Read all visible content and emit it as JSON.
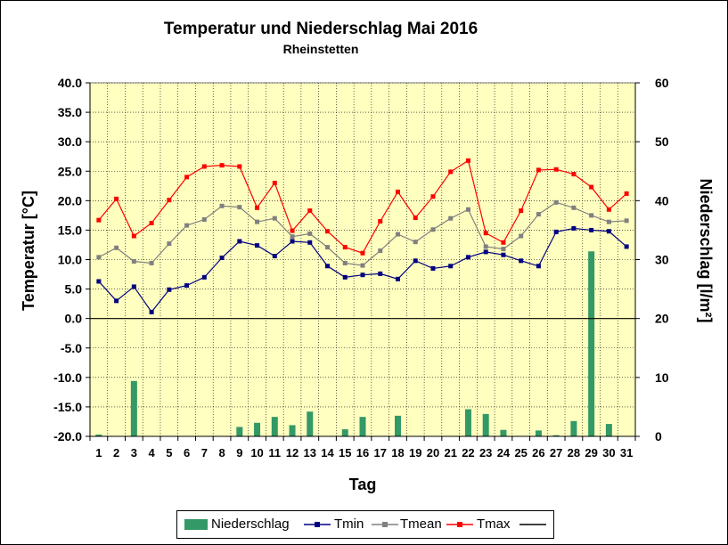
{
  "chart_data": {
    "type": "bar+line",
    "title": "Temperatur und Niederschlag Mai 2016",
    "subtitle": "Rheinstetten",
    "xlabel": "Tag",
    "ylabel_left": "Temperatur [°C]",
    "ylabel_right": "Niederschlag [l/m²]",
    "ylim_left": [
      -20,
      40
    ],
    "ylim_right": [
      0,
      60
    ],
    "grid": "horizontal",
    "legend_position": "bottom",
    "categories": [
      "1",
      "2",
      "3",
      "4",
      "5",
      "6",
      "7",
      "8",
      "9",
      "10",
      "11",
      "12",
      "13",
      "14",
      "15",
      "16",
      "17",
      "18",
      "19",
      "20",
      "21",
      "22",
      "23",
      "24",
      "25",
      "26",
      "27",
      "28",
      "29",
      "30",
      "31"
    ],
    "yticks_left": [
      "40.0",
      "35.0",
      "30.0",
      "25.0",
      "20.0",
      "15.0",
      "10.0",
      "5.0",
      "0.0",
      "-5.0",
      "-10.0",
      "-15.0",
      "-20.0"
    ],
    "yticks_right": [
      "60",
      "50",
      "40",
      "30",
      "20",
      "10",
      "0"
    ],
    "series": [
      {
        "name": "Niederschlag",
        "type": "bar",
        "axis": "right",
        "color": "#339966",
        "values": [
          0.3,
          0,
          9.4,
          0,
          0,
          0,
          0,
          0,
          1.6,
          2.3,
          3.3,
          1.9,
          4.2,
          0,
          1.2,
          3.3,
          0,
          3.5,
          0,
          0,
          0,
          4.6,
          3.8,
          1.1,
          0,
          1.0,
          0.2,
          2.6,
          31.4,
          2.1,
          0
        ]
      },
      {
        "name": "Tmin",
        "type": "line",
        "axis": "left",
        "color": "#000080",
        "values": [
          6.3,
          3.0,
          5.4,
          1.1,
          4.9,
          5.6,
          7.0,
          10.3,
          13.1,
          12.4,
          10.6,
          13.1,
          12.9,
          8.9,
          7.0,
          7.4,
          7.6,
          6.7,
          9.8,
          8.5,
          8.9,
          10.4,
          11.3,
          10.8,
          9.8,
          8.9,
          14.7,
          15.3,
          15.0,
          14.8,
          12.2
        ]
      },
      {
        "name": "Tmean",
        "type": "line",
        "axis": "left",
        "color": "#808080",
        "values": [
          10.4,
          12.0,
          9.7,
          9.4,
          12.7,
          15.8,
          16.8,
          19.1,
          18.9,
          16.4,
          17.0,
          13.9,
          14.4,
          12.1,
          9.4,
          9.0,
          11.5,
          14.3,
          13.0,
          15.1,
          17.0,
          18.5,
          12.2,
          11.8,
          14.0,
          17.7,
          19.7,
          18.8,
          17.5,
          16.4,
          16.6
        ]
      },
      {
        "name": "Tmax",
        "type": "line",
        "axis": "left",
        "color": "#FF0000",
        "values": [
          16.7,
          20.3,
          14.0,
          16.2,
          20.1,
          24.0,
          25.8,
          26.0,
          25.8,
          18.8,
          23.0,
          14.9,
          18.3,
          14.8,
          12.1,
          11.1,
          16.5,
          21.5,
          17.1,
          20.7,
          24.9,
          26.8,
          14.5,
          12.9,
          18.3,
          25.2,
          25.3,
          24.5,
          22.3,
          18.5,
          21.2
        ]
      }
    ],
    "legend": [
      "Niederschlag",
      "Tmin",
      "Tmean",
      "Tmax",
      ""
    ]
  }
}
